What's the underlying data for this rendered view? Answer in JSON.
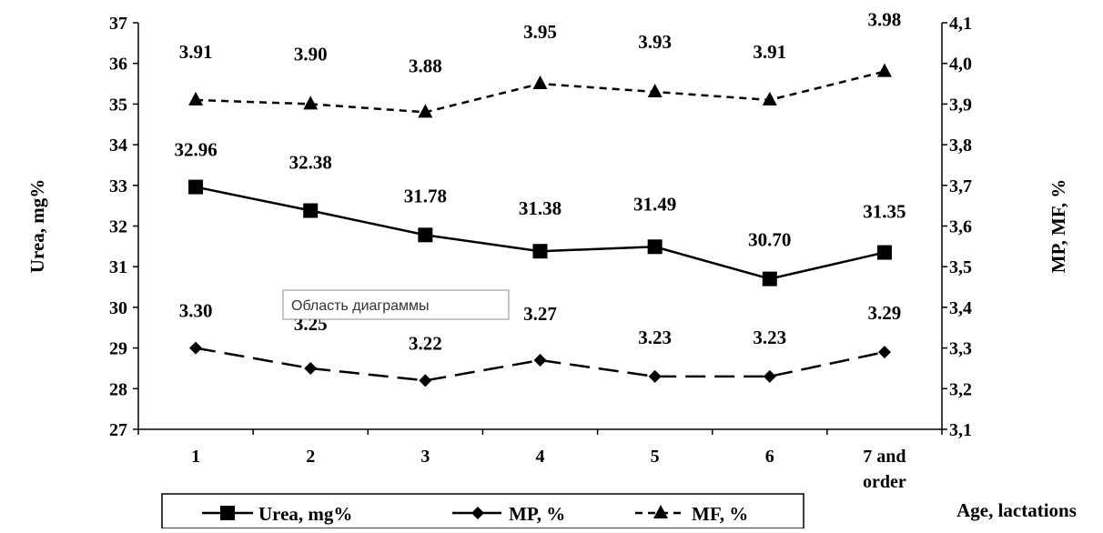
{
  "chart_data": {
    "type": "line",
    "categories": [
      "1",
      "2",
      "3",
      "4",
      "5",
      "6",
      "7 and order"
    ],
    "xlabel": "Age, lactations",
    "ylabel": "Urea, mg%",
    "y2label": "MP, MF, %",
    "ylim": [
      27,
      37
    ],
    "y2lim": [
      3.1,
      4.1
    ],
    "yticks": [
      "27",
      "28",
      "29",
      "30",
      "31",
      "32",
      "33",
      "34",
      "35",
      "36",
      "37"
    ],
    "y2ticks": [
      "3,1",
      "3,2",
      "3,3",
      "3,4",
      "3,5",
      "3,6",
      "3,7",
      "3,8",
      "3,9",
      "4,0",
      "4,1"
    ],
    "grid": false,
    "legend": "bottom",
    "series": [
      {
        "name": "Urea, mg%",
        "axis": "left",
        "values": [
          32.96,
          32.38,
          31.78,
          31.38,
          31.49,
          30.7,
          31.35
        ],
        "labels": [
          "32.96",
          "32.38",
          "31.78",
          "31.38",
          "31.49",
          "30.70",
          "31.35"
        ],
        "marker": "square",
        "line": "solid",
        "color": "#000000"
      },
      {
        "name": "MP, %",
        "axis": "right",
        "values": [
          3.3,
          3.25,
          3.22,
          3.27,
          3.23,
          3.23,
          3.29
        ],
        "labels": [
          "3.30",
          "3.25",
          "3.22",
          "3.27",
          "3.23",
          "3.23",
          "3.29"
        ],
        "marker": "diamond",
        "line": "long-dash",
        "color": "#000000"
      },
      {
        "name": "MF, %",
        "axis": "right",
        "values": [
          3.91,
          3.9,
          3.88,
          3.95,
          3.93,
          3.91,
          3.98
        ],
        "labels": [
          "3.91",
          "3.90",
          "3.88",
          "3.95",
          "3.93",
          "3.91",
          "3.98"
        ],
        "marker": "triangle",
        "line": "short-dash",
        "color": "#000000"
      }
    ],
    "tooltip": "Область диаграммы"
  }
}
